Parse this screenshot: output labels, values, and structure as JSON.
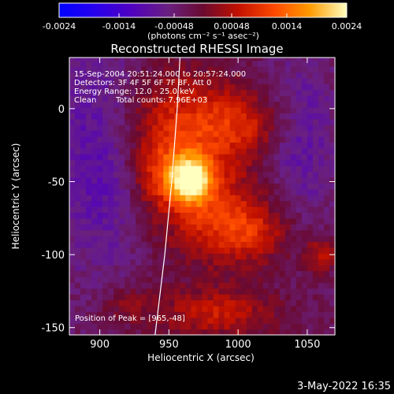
{
  "chart_data": {
    "type": "heatmap",
    "title": "Reconstructed RHESSI Image",
    "xlabel": "Heliocentric X (arcsec)",
    "ylabel": "Heliocentric Y (arcsec)",
    "xlim": [
      878,
      1070
    ],
    "ylim": [
      -155,
      35
    ],
    "x_ticks": [
      900,
      950,
      1000,
      1050
    ],
    "y_ticks": [
      0,
      -50,
      -100,
      -150
    ],
    "colorbar": {
      "min": -0.0024,
      "max": 0.0024,
      "tick_values": [
        -0.0024,
        -0.0014,
        -0.00048,
        0.00048,
        0.0014,
        0.0024
      ],
      "tick_labels": [
        "-0.0024",
        "-0.0014",
        "-0.00048",
        "0.00048",
        "0.0014",
        "0.0024"
      ],
      "units_label": "(photons cm⁻² s⁻¹ asec⁻²)"
    },
    "annotations": {
      "time_range": "15-Sep-2004 20:51:24.000 to 20:57:24.000",
      "detectors": "Detectors: 3F 4F 5F 6F 7F 8F, Att 0",
      "energy": "Energy Range: 12.0 - 25.0 keV",
      "method": "Clean",
      "counts": "Total counts: 7.96E+03",
      "peak": "Position of Peak = [965,-48]"
    },
    "peak": {
      "x": 965,
      "y": -48,
      "value": 0.0024
    },
    "limb": [
      [
        958,
        35
      ],
      [
        956,
        0
      ],
      [
        952,
        -50
      ],
      [
        947,
        -100
      ],
      [
        940,
        -155
      ]
    ],
    "sources": [
      {
        "x": 965,
        "y": -48,
        "sx": 11,
        "sy": 12,
        "amp": 0.0023
      },
      {
        "x": 958,
        "y": -10,
        "sx": 30,
        "sy": 26,
        "amp": 0.0011
      },
      {
        "x": 980,
        "y": -70,
        "sx": 28,
        "sy": 26,
        "amp": 0.001
      },
      {
        "x": 1005,
        "y": -10,
        "sx": 22,
        "sy": 15,
        "amp": 0.0008
      },
      {
        "x": 1010,
        "y": -85,
        "sx": 20,
        "sy": 14,
        "amp": 0.0008
      },
      {
        "x": 940,
        "y": -45,
        "sx": 12,
        "sy": 18,
        "amp": 0.0007
      },
      {
        "x": 985,
        "y": -140,
        "sx": 30,
        "sy": 12,
        "amp": 0.0009
      },
      {
        "x": 1060,
        "y": -100,
        "sx": 8,
        "sy": 8,
        "amp": 0.0009
      },
      {
        "x": 920,
        "y": -135,
        "sx": 15,
        "sy": 10,
        "amp": 0.0005
      },
      {
        "x": 900,
        "y": -30,
        "sx": 25,
        "sy": 60,
        "amp": -0.0007
      },
      {
        "x": 1045,
        "y": -20,
        "sx": 18,
        "sy": 40,
        "amp": -0.0006
      }
    ]
  },
  "footer": {
    "date": "3-May-2022 16:35"
  }
}
